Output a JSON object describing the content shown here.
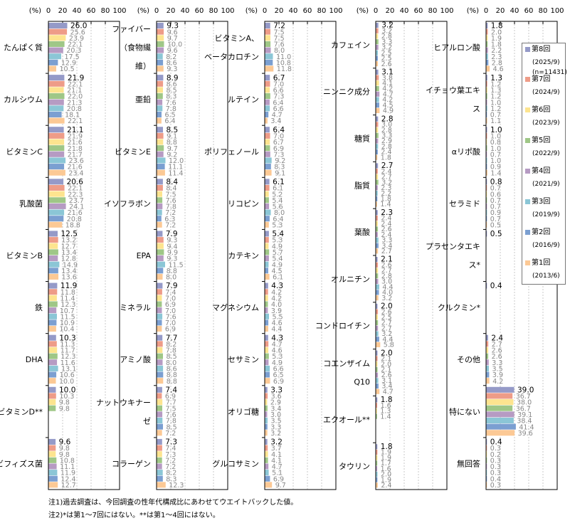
{
  "chart_data": {
    "type": "bar",
    "orientation": "horizontal",
    "unit_label": "(%)",
    "xticks": [
      "0",
      "20",
      "40",
      "60",
      "80",
      "100"
    ],
    "xlim": [
      0,
      100
    ],
    "grid": true,
    "legend_position": "right",
    "series": [
      {
        "name": "第8回",
        "date": "(2025/9)",
        "note": "(n=11431)",
        "color": "#959ac8"
      },
      {
        "name": "第7回",
        "date": "(2024/9)",
        "note": "",
        "color": "#ee9c88"
      },
      {
        "name": "第6回",
        "date": "(2023/9)",
        "note": "",
        "color": "#fde48f"
      },
      {
        "name": "第5回",
        "date": "(2022/9)",
        "note": "",
        "color": "#9fc787"
      },
      {
        "name": "第4回",
        "date": "(2021/9)",
        "note": "",
        "color": "#b69bc3"
      },
      {
        "name": "第3回",
        "date": "(2019/9)",
        "note": "",
        "color": "#8bc6d6"
      },
      {
        "name": "第2回",
        "date": "(2016/9)",
        "note": "",
        "color": "#7b9fd1"
      },
      {
        "name": "第1回",
        "date": "(2013/6)",
        "note": "",
        "color": "#fcc995"
      }
    ],
    "panels": [
      {
        "categories": [
          {
            "label": [
              "たんぱく質"
            ],
            "values": [
              26.0,
              25.6,
              23.9,
              22.1,
              20.3,
              17.5,
              12.9,
              10.5
            ]
          },
          {
            "label": [
              "カルシウム"
            ],
            "values": [
              21.9,
              22.1,
              21.1,
              22.0,
              21.3,
              20.8,
              18.1,
              22.1
            ]
          },
          {
            "label": [
              "ビタミンC"
            ],
            "values": [
              21.1,
              21.9,
              21.6,
              21.8,
              21.7,
              23.6,
              21.6,
              23.4
            ]
          },
          {
            "label": [
              "乳酸菌"
            ],
            "values": [
              20.6,
              22.1,
              22.3,
              23.7,
              24.1,
              21.6,
              20.8,
              18.8
            ]
          },
          {
            "label": [
              "ビタミンB"
            ],
            "values": [
              12.5,
              13.2,
              12.7,
              13.4,
              12.8,
              14.9,
              13.4,
              13.6
            ]
          },
          {
            "label": [
              "鉄"
            ],
            "values": [
              11.9,
              11.8,
              11.4,
              12.3,
              10.7,
              11.5,
              10.9,
              10.4
            ]
          },
          {
            "label": [
              "DHA"
            ],
            "values": [
              10.3,
              11.3,
              11.7,
              12.3,
              11.6,
              13.1,
              10.6,
              10.0
            ]
          },
          {
            "label": [
              "ビタミンD**"
            ],
            "values": [
              10.0,
              10.3,
              9.8,
              9.8,
              null,
              null,
              null,
              null
            ]
          },
          {
            "label": [
              "ビフィズス菌"
            ],
            "values": [
              9.6,
              9.8,
              9.8,
              10.8,
              11.1,
              11.9,
              12.4,
              12.7
            ]
          }
        ]
      },
      {
        "categories": [
          {
            "label": [
              "ファイバー",
              "（食物繊",
              "維）"
            ],
            "values": [
              9.3,
              9.6,
              9.7,
              10.0,
              9.6,
              8.2,
              8.6,
              9.3
            ]
          },
          {
            "label": [
              "亜鉛"
            ],
            "values": [
              8.9,
              8.6,
              8.5,
              8.3,
              7.6,
              7.8,
              6.5,
              6.4
            ]
          },
          {
            "label": [
              "ビタミンE"
            ],
            "values": [
              8.5,
              9.1,
              8.8,
              9.7,
              9.2,
              12.0,
              11.1,
              11.4
            ]
          },
          {
            "label": [
              "イソフラボン"
            ],
            "values": [
              8.4,
              8.4,
              7.5,
              7.6,
              7.8,
              7.2,
              6.3,
              7.2
            ]
          },
          {
            "label": [
              "EPA"
            ],
            "values": [
              7.9,
              9.3,
              9.4,
              9.9,
              9.3,
              11.5,
              8.8,
              8.0
            ]
          },
          {
            "label": [
              "ミネラル"
            ],
            "values": [
              7.9,
              7.4,
              7.0,
              6.9,
              7.0,
              7.6,
              7.0,
              6.9
            ]
          },
          {
            "label": [
              "アミノ酸"
            ],
            "values": [
              7.7,
              8.2,
              7.8,
              8.5,
              8.0,
              8.6,
              8.8,
              8.8
            ]
          },
          {
            "label": [
              "ナットウキナー",
              "ゼ"
            ],
            "values": [
              7.4,
              6.9,
              7.7,
              7.5,
              7.6,
              7.8,
              8.5,
              7.2
            ]
          },
          {
            "label": [
              "コラーゲン"
            ],
            "values": [
              7.3,
              7.4,
              7.3,
              7.2,
              7.2,
              8.2,
              8.3,
              12.3
            ]
          }
        ]
      },
      {
        "categories": [
          {
            "label": [
              "ビタミンA、",
              "ベータカロチン"
            ],
            "values": [
              7.2,
              7.5,
              7.5,
              7.6,
              8.0,
              11.0,
              10.8,
              11.8
            ]
          },
          {
            "label": [
              "ルテイン"
            ],
            "values": [
              6.7,
              7.0,
              6.6,
              7.3,
              6.4,
              6.6,
              4.7,
              3.4
            ]
          },
          {
            "label": [
              "ポリフェノール"
            ],
            "values": [
              6.4,
              7.0,
              6.7,
              6.9,
              7.3,
              9.2,
              8.3,
              9.1
            ]
          },
          {
            "label": [
              "リコピン"
            ],
            "values": [
              6.1,
              6.1,
              5.2,
              5.4,
              5.6,
              8.0,
              6.4,
              5.3
            ]
          },
          {
            "label": [
              "カテキン"
            ],
            "values": [
              5.4,
              5.3,
              4.9,
              5.7,
              5.4,
              4.9,
              4.5,
              6.1
            ]
          },
          {
            "label": [
              "マグネシウム"
            ],
            "values": [
              4.3,
              4.2,
              4.2,
              4.0,
              3.9,
              5.5,
              4.6,
              4.4
            ]
          },
          {
            "label": [
              "セサミン"
            ],
            "values": [
              4.3,
              4.7,
              4.6,
              5.3,
              4.9,
              6.6,
              6.5,
              6.9
            ]
          },
          {
            "label": [
              "オリゴ糖"
            ],
            "values": [
              3.3,
              3.6,
              2.9,
              3.4,
              3.0,
              3.5,
              3.3,
              3.2
            ]
          },
          {
            "label": [
              "グルコサミン"
            ],
            "values": [
              3.2,
              3.7,
              4.1,
              4.1,
              4.7,
              5.1,
              6.9,
              9.7
            ]
          }
        ]
      },
      {
        "categories": [
          {
            "label": [
              "カフェイン"
            ],
            "values": [
              3.2,
              3.2,
              2.8,
              3.3,
              3.2,
              2.5,
              2.5,
              2.6
            ]
          },
          {
            "label": [
              "ニンニク成分"
            ],
            "values": [
              3.1,
              3.8,
              4.1,
              4.2,
              4.7,
              4.2,
              4.5,
              4.9
            ]
          },
          {
            "label": [
              "糖質"
            ],
            "values": [
              2.8,
              3.0,
              2.8,
              3.3,
              2.9,
              2.8,
              2.4,
              1.8
            ]
          },
          {
            "label": [
              "脂質"
            ],
            "values": [
              2.7,
              2.4,
              2.7,
              3.2,
              2.3,
              2.2,
              1.8,
              1.4
            ]
          },
          {
            "label": [
              "葉酸"
            ],
            "values": [
              2.3,
              2.4,
              2.4,
              2.6,
              2.4,
              3.3,
              3.4,
              2.7
            ]
          },
          {
            "label": [
              "オルニチン"
            ],
            "values": [
              2.1,
              2.6,
              2.7,
              2.8,
              3.0,
              4.4,
              4.0,
              3.2
            ]
          },
          {
            "label": [
              "コンドロイチン"
            ],
            "values": [
              2.0,
              2.6,
              2.5,
              2.7,
              2.7,
              3.2,
              4.4,
              5.8
            ]
          },
          {
            "label": [
              "コエンザイム",
              "Q10"
            ],
            "values": [
              2.0,
              2.1,
              2.0,
              2.1,
              2.6,
              3.1,
              3.4,
              4.7
            ]
          },
          {
            "label": [
              "エクオール**"
            ],
            "values": [
              1.8,
              1.6,
              1.3,
              1.4,
              null,
              null,
              null,
              null
            ]
          },
          {
            "label": [
              "タウリン"
            ],
            "values": [
              1.8,
              1.9,
              1.9,
              1.7,
              1.6,
              2.0,
              1.9,
              2.4
            ]
          }
        ]
      },
      {
        "categories": [
          {
            "label": [
              "ヒアルロン酸"
            ],
            "values": [
              1.8,
              2.0,
              1.9,
              1.8,
              2.2,
              2.3,
              2.8,
              4.6
            ]
          },
          {
            "label": [
              "イチョウ葉エキ",
              "ス"
            ],
            "values": [
              1.3,
              1.2,
              1.3,
              1.2,
              1.0,
              1.2,
              0.7,
              1.1
            ]
          },
          {
            "label": [
              "αリポ酸"
            ],
            "values": [
              1.0,
              1.0,
              0.8,
              1.0,
              0.7,
              1.0,
              0.9,
              1.4
            ]
          },
          {
            "label": [
              "セラミド"
            ],
            "values": [
              0.8,
              0.7,
              0.6,
              0.7,
              0.7,
              0.9,
              0.7,
              0.5
            ]
          },
          {
            "label": [
              "プラセンタエキ",
              "ス*"
            ],
            "values": [
              0.5,
              null,
              null,
              null,
              null,
              null,
              null,
              null
            ]
          },
          {
            "label": [
              "クルクミン*"
            ],
            "values": [
              0.4,
              null,
              null,
              null,
              null,
              null,
              null,
              null
            ]
          },
          {
            "label": [
              "その他"
            ],
            "values": [
              2.4,
              2.7,
              2.6,
              2.6,
              3.3,
              3.5,
              3.9,
              4.2
            ]
          },
          {
            "label": [
              "特にない"
            ],
            "values": [
              39.0,
              36.7,
              38.0,
              36.7,
              39.1,
              38.4,
              41.4,
              39.6
            ]
          },
          {
            "label": [
              "無回答"
            ],
            "values": [
              0.4,
              0.3,
              0.2,
              0.3,
              0.3,
              0.3,
              0.4,
              0.3
            ]
          }
        ]
      }
    ]
  },
  "notes": [
    "注1)過去調査は、今回調査の性年代構成比にあわせてウエイトバックした値。",
    "注2)*は第1～7回にはない。**は第1～4回にはない。"
  ]
}
